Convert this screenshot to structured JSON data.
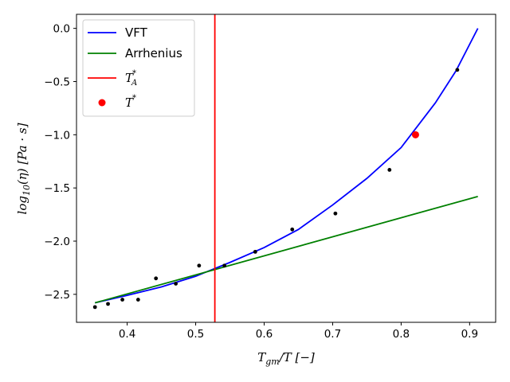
{
  "chart_data": {
    "type": "line",
    "xlabel": {
      "main": "T",
      "sub": "gm",
      "rest": "/T [−]"
    },
    "ylabel": {
      "main": "log",
      "sub": "10",
      "rest": "(η) [Pa · s]"
    },
    "xlim": [
      0.326,
      0.938
    ],
    "ylim": [
      -2.763,
      0.132
    ],
    "xticks": [
      0.4,
      0.5,
      0.6,
      0.7,
      0.8,
      0.9
    ],
    "xtick_labels": [
      "0.4",
      "0.5",
      "0.6",
      "0.7",
      "0.8",
      "0.9"
    ],
    "yticks": [
      0.0,
      -0.5,
      -1.0,
      -1.5,
      -2.0,
      -2.5
    ],
    "ytick_labels": [
      "0.0",
      "−0.5",
      "−1.0",
      "−1.5",
      "−2.0",
      "−2.5"
    ],
    "grid": false,
    "legend_position": "top-left",
    "series": [
      {
        "name": "VFT",
        "kind": "line",
        "color": "#0000ff",
        "x": [
          0.353,
          0.4,
          0.45,
          0.5,
          0.55,
          0.6,
          0.65,
          0.7,
          0.75,
          0.8,
          0.85,
          0.88,
          0.912
        ],
        "y": [
          -2.58,
          -2.51,
          -2.43,
          -2.33,
          -2.2,
          -2.06,
          -1.89,
          -1.66,
          -1.41,
          -1.12,
          -0.7,
          -0.4,
          0.0
        ]
      },
      {
        "name": "Arrhenius",
        "kind": "line",
        "color": "#008000",
        "x": [
          0.353,
          0.912
        ],
        "y": [
          -2.58,
          -1.58
        ]
      },
      {
        "name": "T*_A",
        "kind": "vline",
        "color": "#ff0000",
        "x": 0.528
      },
      {
        "name": "T*",
        "kind": "point",
        "color": "#ff0000",
        "x": [
          0.821
        ],
        "y": [
          -1.0
        ]
      },
      {
        "name": "",
        "kind": "scatter",
        "color": "#000000",
        "x": [
          0.353,
          0.372,
          0.393,
          0.416,
          0.442,
          0.471,
          0.505,
          0.542,
          0.587,
          0.641,
          0.704,
          0.783,
          0.882
        ],
        "y": [
          -2.62,
          -2.59,
          -2.55,
          -2.55,
          -2.35,
          -2.4,
          -2.23,
          -2.23,
          -2.1,
          -1.89,
          -1.74,
          -1.33,
          -0.39
        ]
      }
    ],
    "legend": [
      {
        "label": "VFT",
        "math": false,
        "sub": "",
        "sup": ""
      },
      {
        "label": "Arrhenius",
        "math": false,
        "sub": "",
        "sup": ""
      },
      {
        "label": "T",
        "math": true,
        "sub": "A",
        "sup": "*"
      },
      {
        "label": "T",
        "math": true,
        "sub": "",
        "sup": "*"
      }
    ]
  }
}
